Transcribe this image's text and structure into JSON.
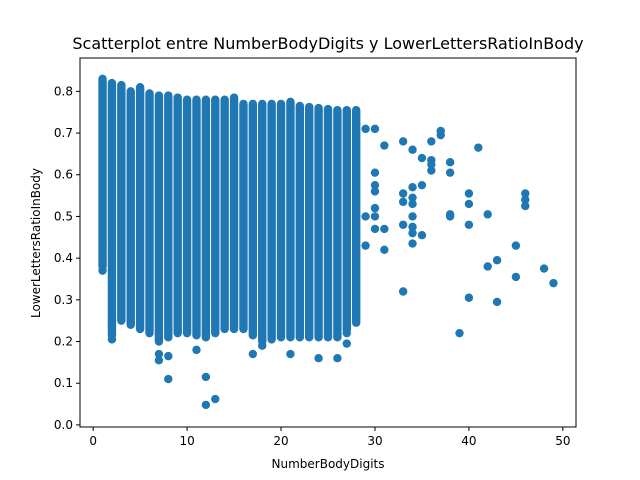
{
  "chart_data": {
    "type": "scatter",
    "title": "Scatterplot entre NumberBodyDigits y LowerLettersRatioInBody",
    "xlabel": "NumberBodyDigits",
    "ylabel": "LowerLettersRatioInBody",
    "xlim": [
      -1.4,
      51.4
    ],
    "ylim": [
      -0.005,
      0.88
    ],
    "xticks": [
      0,
      10,
      20,
      30,
      40,
      50
    ],
    "yticks": [
      0.0,
      0.1,
      0.2,
      0.3,
      0.4,
      0.5,
      0.6,
      0.7,
      0.8
    ],
    "grid": false,
    "marker_color": "#1f77b4",
    "dense_band": {
      "x_min": 1,
      "x_max": 28,
      "upper_envelope": [
        [
          1,
          0.84
        ],
        [
          2,
          0.83
        ],
        [
          3,
          0.825
        ],
        [
          4,
          0.81
        ],
        [
          5,
          0.82
        ],
        [
          6,
          0.805
        ],
        [
          7,
          0.8
        ],
        [
          8,
          0.8
        ],
        [
          9,
          0.795
        ],
        [
          10,
          0.79
        ],
        [
          12,
          0.79
        ],
        [
          14,
          0.79
        ],
        [
          15,
          0.795
        ],
        [
          16,
          0.78
        ],
        [
          18,
          0.78
        ],
        [
          20,
          0.78
        ],
        [
          21,
          0.785
        ],
        [
          22,
          0.775
        ],
        [
          24,
          0.77
        ],
        [
          26,
          0.765
        ],
        [
          28,
          0.765
        ]
      ],
      "lower_envelope": [
        [
          1,
          0.37
        ],
        [
          2,
          0.21
        ],
        [
          3,
          0.24
        ],
        [
          4,
          0.23
        ],
        [
          5,
          0.22
        ],
        [
          6,
          0.21
        ],
        [
          7,
          0.19
        ],
        [
          8,
          0.2
        ],
        [
          9,
          0.21
        ],
        [
          10,
          0.21
        ],
        [
          12,
          0.2
        ],
        [
          14,
          0.22
        ],
        [
          16,
          0.22
        ],
        [
          18,
          0.19
        ],
        [
          20,
          0.2
        ],
        [
          22,
          0.2
        ],
        [
          24,
          0.2
        ],
        [
          26,
          0.2
        ],
        [
          28,
          0.235
        ]
      ]
    },
    "points": [
      {
        "x": 1,
        "y": 0.4
      },
      {
        "x": 1,
        "y": 0.44
      },
      {
        "x": 1,
        "y": 0.37
      },
      {
        "x": 2,
        "y": 0.205
      },
      {
        "x": 2,
        "y": 0.215
      },
      {
        "x": 2,
        "y": 0.25
      },
      {
        "x": 7,
        "y": 0.17
      },
      {
        "x": 7,
        "y": 0.155
      },
      {
        "x": 8,
        "y": 0.165
      },
      {
        "x": 8,
        "y": 0.11
      },
      {
        "x": 11,
        "y": 0.18
      },
      {
        "x": 12,
        "y": 0.115
      },
      {
        "x": 12,
        "y": 0.048
      },
      {
        "x": 13,
        "y": 0.062
      },
      {
        "x": 17,
        "y": 0.17
      },
      {
        "x": 18,
        "y": 0.19
      },
      {
        "x": 21,
        "y": 0.17
      },
      {
        "x": 24,
        "y": 0.16
      },
      {
        "x": 26,
        "y": 0.16
      },
      {
        "x": 27,
        "y": 0.195
      },
      {
        "x": 27,
        "y": 0.22
      },
      {
        "x": 28,
        "y": 0.72
      },
      {
        "x": 28,
        "y": 0.5
      },
      {
        "x": 28,
        "y": 0.45
      },
      {
        "x": 29,
        "y": 0.71
      },
      {
        "x": 29,
        "y": 0.5
      },
      {
        "x": 29,
        "y": 0.43
      },
      {
        "x": 30,
        "y": 0.71
      },
      {
        "x": 30,
        "y": 0.605
      },
      {
        "x": 30,
        "y": 0.575
      },
      {
        "x": 30,
        "y": 0.56
      },
      {
        "x": 30,
        "y": 0.52
      },
      {
        "x": 30,
        "y": 0.5
      },
      {
        "x": 30,
        "y": 0.47
      },
      {
        "x": 31,
        "y": 0.67
      },
      {
        "x": 31,
        "y": 0.47
      },
      {
        "x": 31,
        "y": 0.42
      },
      {
        "x": 33,
        "y": 0.68
      },
      {
        "x": 33,
        "y": 0.555
      },
      {
        "x": 33,
        "y": 0.535
      },
      {
        "x": 33,
        "y": 0.48
      },
      {
        "x": 33,
        "y": 0.32
      },
      {
        "x": 34,
        "y": 0.66
      },
      {
        "x": 34,
        "y": 0.57
      },
      {
        "x": 34,
        "y": 0.545
      },
      {
        "x": 34,
        "y": 0.53
      },
      {
        "x": 34,
        "y": 0.5
      },
      {
        "x": 34,
        "y": 0.475
      },
      {
        "x": 34,
        "y": 0.46
      },
      {
        "x": 34,
        "y": 0.435
      },
      {
        "x": 35,
        "y": 0.64
      },
      {
        "x": 35,
        "y": 0.575
      },
      {
        "x": 35,
        "y": 0.455
      },
      {
        "x": 36,
        "y": 0.68
      },
      {
        "x": 36,
        "y": 0.635
      },
      {
        "x": 36,
        "y": 0.625
      },
      {
        "x": 36,
        "y": 0.61
      },
      {
        "x": 37,
        "y": 0.705
      },
      {
        "x": 37,
        "y": 0.695
      },
      {
        "x": 38,
        "y": 0.63
      },
      {
        "x": 38,
        "y": 0.605
      },
      {
        "x": 38,
        "y": 0.505
      },
      {
        "x": 38,
        "y": 0.5
      },
      {
        "x": 39,
        "y": 0.22
      },
      {
        "x": 40,
        "y": 0.555
      },
      {
        "x": 40,
        "y": 0.53
      },
      {
        "x": 40,
        "y": 0.48
      },
      {
        "x": 40,
        "y": 0.305
      },
      {
        "x": 41,
        "y": 0.665
      },
      {
        "x": 42,
        "y": 0.505
      },
      {
        "x": 42,
        "y": 0.38
      },
      {
        "x": 43,
        "y": 0.395
      },
      {
        "x": 43,
        "y": 0.295
      },
      {
        "x": 45,
        "y": 0.43
      },
      {
        "x": 45,
        "y": 0.355
      },
      {
        "x": 46,
        "y": 0.555
      },
      {
        "x": 46,
        "y": 0.54
      },
      {
        "x": 46,
        "y": 0.525
      },
      {
        "x": 48,
        "y": 0.375
      },
      {
        "x": 49,
        "y": 0.34
      }
    ]
  }
}
